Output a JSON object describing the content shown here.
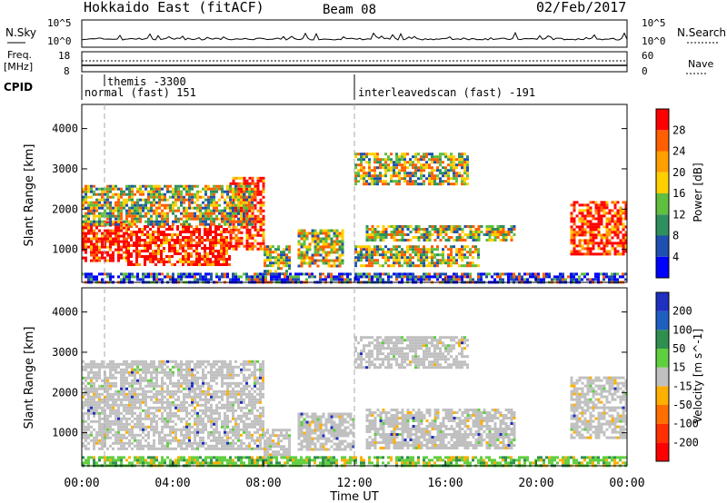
{
  "header": {
    "station": "Hokkaido East (fitACF)",
    "beam": "Beam 08",
    "date": "02/Feb/2017"
  },
  "noise_panel": {
    "left_label": "N.Sky",
    "right_label": "N.Search",
    "left_ticks": [
      "10^5",
      "10^0"
    ],
    "right_ticks": [
      "10^5",
      "10^0"
    ]
  },
  "freq_panel": {
    "left_label_1": "Freq.",
    "left_label_2": "[MHz]",
    "right_label": "Nave",
    "left_ticks": [
      "18",
      "8"
    ],
    "right_ticks": [
      "60",
      "0"
    ]
  },
  "cpid_panel": {
    "label": "CPID",
    "entries": [
      {
        "text": "themis -3300",
        "start_hour": 1.0
      },
      {
        "text": "normal (fast) 151",
        "start_hour": 0.0
      },
      {
        "text": "interleavedscan (fast) -191",
        "start_hour": 12.0
      }
    ]
  },
  "x_axis": {
    "label": "Time UT",
    "ticks": [
      "00:00",
      "04:00",
      "08:00",
      "12:00",
      "16:00",
      "20:00",
      "00:00"
    ],
    "range_hours": [
      0,
      24
    ]
  },
  "chart_data": [
    {
      "type": "heatmap",
      "title": "",
      "xlabel": "Time UT",
      "ylabel": "Slant Range [km]",
      "xlim": [
        0,
        24
      ],
      "ylim": [
        180,
        4600
      ],
      "yticks": [
        "1000",
        "2000",
        "3000",
        "4000"
      ],
      "colorbar": {
        "label": "Power [dB]",
        "ticks": [
          "4",
          "8",
          "12",
          "16",
          "20",
          "24",
          "28"
        ],
        "colors": [
          "#0000ff",
          "#1f4fb0",
          "#2f8f5f",
          "#5fbf3f",
          "#ffcf00",
          "#ff9f00",
          "#ff5f00",
          "#ff0000"
        ]
      },
      "regions": [
        {
          "t0": 0.0,
          "t1": 2.0,
          "r0": 700,
          "r1": 1700,
          "level": "high"
        },
        {
          "t0": 2.0,
          "t1": 6.5,
          "r0": 600,
          "r1": 1600,
          "level": "high"
        },
        {
          "t0": 6.5,
          "t1": 8.0,
          "r0": 1000,
          "r1": 2800,
          "level": "high"
        },
        {
          "t0": 0.0,
          "t1": 7.5,
          "r0": 1600,
          "r1": 2600,
          "level": "mid"
        },
        {
          "t0": 8.0,
          "t1": 9.2,
          "r0": 400,
          "r1": 1100,
          "level": "mid"
        },
        {
          "t0": 9.5,
          "t1": 11.5,
          "r0": 600,
          "r1": 1500,
          "level": "mid"
        },
        {
          "t0": 12.0,
          "t1": 17.0,
          "r0": 2600,
          "r1": 3400,
          "level": "mid"
        },
        {
          "t0": 12.5,
          "t1": 19.0,
          "r0": 1200,
          "r1": 1600,
          "level": "mid"
        },
        {
          "t0": 12.0,
          "t1": 17.5,
          "r0": 600,
          "r1": 1100,
          "level": "mid"
        },
        {
          "t0": 21.5,
          "t1": 24.0,
          "r0": 900,
          "r1": 2200,
          "level": "high"
        },
        {
          "t0": 0.0,
          "t1": 24.0,
          "r0": 180,
          "r1": 420,
          "level": "low"
        }
      ]
    },
    {
      "type": "heatmap",
      "title": "",
      "xlabel": "Time UT",
      "ylabel": "Slant Range [km]",
      "xlim": [
        0,
        24
      ],
      "ylim": [
        180,
        4600
      ],
      "yticks": [
        "1000",
        "2000",
        "3000",
        "4000"
      ],
      "colorbar": {
        "label": "Velocity [m s^-1]",
        "ticks": [
          "200",
          "100",
          "50",
          "15",
          "-15",
          "-50",
          "-100",
          "-200"
        ],
        "colors": [
          "#1f2fbf",
          "#1f5fbf",
          "#2f8f4f",
          "#5fcf3f",
          "#c0c0c0",
          "#ffaf00",
          "#ff6f00",
          "#ff2f00",
          "#ff0000"
        ]
      },
      "regions": [
        {
          "t0": 0.0,
          "t1": 8.0,
          "r0": 600,
          "r1": 2800,
          "level": "grey"
        },
        {
          "t0": 8.0,
          "t1": 9.2,
          "r0": 400,
          "r1": 1100,
          "level": "grey"
        },
        {
          "t0": 9.5,
          "t1": 12.0,
          "r0": 600,
          "r1": 1500,
          "level": "grey"
        },
        {
          "t0": 12.0,
          "t1": 17.0,
          "r0": 2600,
          "r1": 3400,
          "level": "grey"
        },
        {
          "t0": 12.5,
          "t1": 19.0,
          "r0": 600,
          "r1": 1600,
          "level": "grey"
        },
        {
          "t0": 21.5,
          "t1": 24.0,
          "r0": 900,
          "r1": 2400,
          "level": "grey"
        },
        {
          "t0": 0.0,
          "t1": 24.0,
          "r0": 180,
          "r1": 420,
          "level": "green"
        }
      ]
    }
  ]
}
